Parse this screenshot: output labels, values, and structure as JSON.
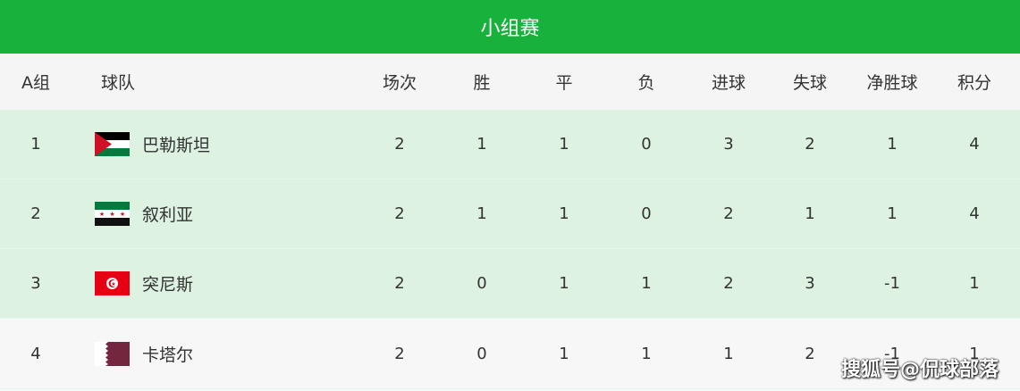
{
  "title": "小组赛",
  "headers": {
    "group": "A组",
    "team": "球队",
    "played": "场次",
    "win": "胜",
    "draw": "平",
    "loss": "负",
    "gf": "进球",
    "ga": "失球",
    "gd": "净胜球",
    "pts": "积分"
  },
  "rows": [
    {
      "rank": "1",
      "team": "巴勒斯坦",
      "flag": "palestine-flag",
      "played": "2",
      "win": "1",
      "draw": "1",
      "loss": "0",
      "gf": "3",
      "ga": "2",
      "gd": "1",
      "pts": "4"
    },
    {
      "rank": "2",
      "team": "叙利亚",
      "flag": "syria-flag",
      "played": "2",
      "win": "1",
      "draw": "1",
      "loss": "0",
      "gf": "2",
      "ga": "1",
      "gd": "1",
      "pts": "4"
    },
    {
      "rank": "3",
      "team": "突尼斯",
      "flag": "tunisia-flag",
      "played": "2",
      "win": "0",
      "draw": "1",
      "loss": "1",
      "gf": "2",
      "ga": "3",
      "gd": "-1",
      "pts": "1"
    },
    {
      "rank": "4",
      "team": "卡塔尔",
      "flag": "qatar-flag",
      "played": "2",
      "win": "0",
      "draw": "1",
      "loss": "1",
      "gf": "1",
      "ga": "2",
      "gd": "-1",
      "pts": "1"
    }
  ],
  "watermark": "搜狐号@侃球部落",
  "colors": {
    "header": "#17b13b",
    "qualified_row": "#ddf2e1"
  }
}
